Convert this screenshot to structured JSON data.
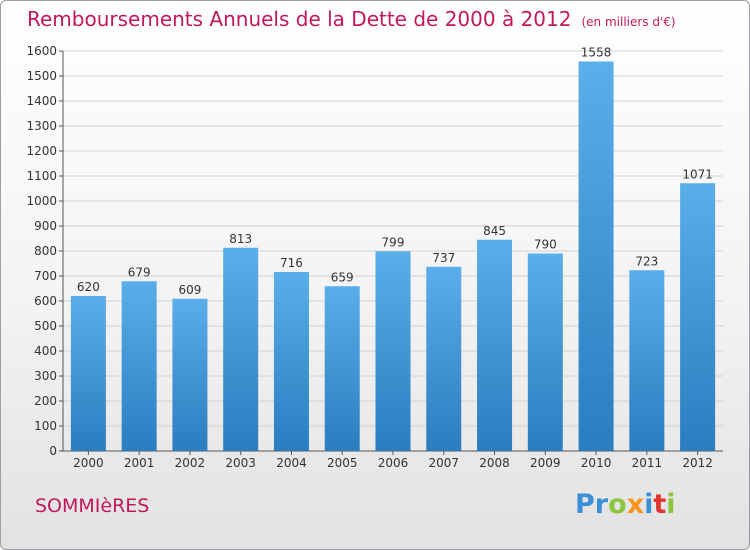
{
  "header": {
    "title": "Remboursements Annuels de la Dette de 2000 à 2012",
    "unit": "(en milliers d'€)"
  },
  "footer": {
    "city": "SOMMIèRES",
    "logo_letters": [
      {
        "char": "P",
        "color": "#3a8fd6"
      },
      {
        "char": "r",
        "color": "#3a8fd6"
      },
      {
        "char": "o",
        "color": "#8cc63f"
      },
      {
        "char": "x",
        "color": "#f7941d"
      },
      {
        "char": "i",
        "color": "#3a8fd6"
      },
      {
        "char": "t",
        "color": "#e2342f"
      },
      {
        "char": "i",
        "color": "#8cc63f"
      }
    ]
  },
  "chart_data": {
    "type": "bar",
    "title": "Remboursements Annuels de la Dette de 2000 à 2012",
    "subtitle": "(en milliers d'€)",
    "categories": [
      "2000",
      "2001",
      "2002",
      "2003",
      "2004",
      "2005",
      "2006",
      "2007",
      "2008",
      "2009",
      "2010",
      "2011",
      "2012"
    ],
    "values": [
      620,
      679,
      609,
      813,
      716,
      659,
      799,
      737,
      845,
      790,
      1558,
      723,
      1071
    ],
    "data_labels": [
      "620",
      "679",
      "609",
      "813",
      "716",
      "659",
      "799",
      "737",
      "845",
      "790",
      "1558",
      "723",
      "1071"
    ],
    "ylim": [
      0,
      1600
    ],
    "yticks": [
      0,
      100,
      200,
      300,
      400,
      500,
      600,
      700,
      800,
      900,
      1000,
      1100,
      1200,
      1300,
      1400,
      1500,
      1600
    ],
    "grid": true,
    "bar_color_top": "#5aaeea",
    "bar_color_bottom": "#2a7dbf",
    "grid_color": "#d2d2d2",
    "text_color": "#333333"
  }
}
